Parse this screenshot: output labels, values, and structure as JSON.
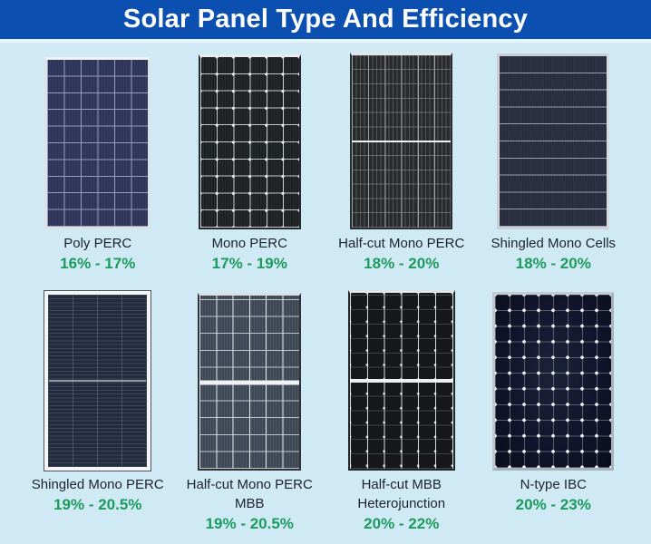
{
  "header": {
    "title": "Solar Panel Type And Efficiency"
  },
  "colors": {
    "header_bg": "#0b4fb1",
    "header_text": "#ffffff",
    "page_bg": "#cfe9f5",
    "label_text": "#1e2130",
    "efficiency_text": "#1d9b5d"
  },
  "panels": [
    {
      "type": "Poly PERC",
      "efficiency": "16% - 17%",
      "graphic": "poly-perc-panel"
    },
    {
      "type": "Mono PERC",
      "efficiency": "17% - 19%",
      "graphic": "mono-perc-panel"
    },
    {
      "type": "Half-cut Mono PERC",
      "efficiency": "18% - 20%",
      "graphic": "halfcut-mono-perc-panel"
    },
    {
      "type": "Shingled Mono Cells",
      "efficiency": "18% - 20%",
      "graphic": "shingled-mono-cells-panel"
    },
    {
      "type": "Shingled Mono PERC",
      "efficiency": "19% - 20.5%",
      "graphic": "shingled-mono-perc-panel"
    },
    {
      "type": "Half-cut Mono PERC MBB",
      "efficiency": "19% - 20.5%",
      "graphic": "halfcut-mono-perc-mbb-panel"
    },
    {
      "type": "Half-cut MBB Heterojunction",
      "efficiency": "20% - 22%",
      "graphic": "halfcut-mbb-heterojunction-panel"
    },
    {
      "type": "N-type IBC",
      "efficiency": "20% - 23%",
      "graphic": "ntype-ibc-panel"
    }
  ]
}
